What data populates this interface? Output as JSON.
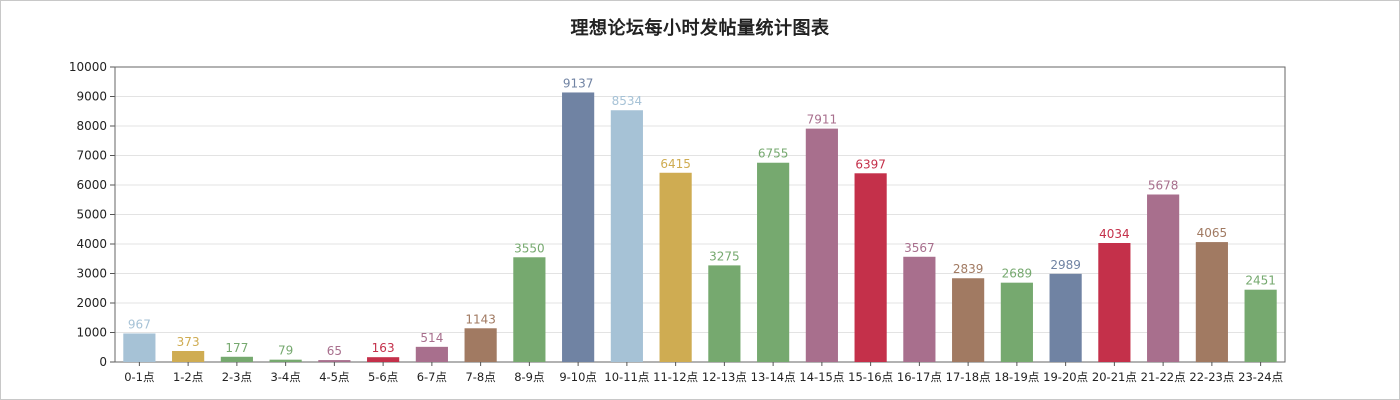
{
  "chart_data": {
    "type": "bar",
    "title": "理想论坛每小时发帖量统计图表",
    "xlabel": "",
    "ylabel": "",
    "ylim": [
      0,
      10000
    ],
    "yticks": [
      0,
      1000,
      2000,
      3000,
      4000,
      5000,
      6000,
      7000,
      8000,
      9000,
      10000
    ],
    "grid": true,
    "legend": "none",
    "categories": [
      "0-1点",
      "1-2点",
      "2-3点",
      "3-4点",
      "4-5点",
      "5-6点",
      "6-7点",
      "7-8点",
      "8-9点",
      "9-10点",
      "10-11点",
      "11-12点",
      "12-13点",
      "13-14点",
      "14-15点",
      "15-16点",
      "16-17点",
      "17-18点",
      "18-19点",
      "19-20点",
      "20-21点",
      "21-22点",
      "22-23点",
      "23-24点"
    ],
    "values": [
      967,
      373,
      177,
      79,
      65,
      163,
      514,
      1143,
      3550,
      9137,
      8534,
      6415,
      3275,
      6755,
      7911,
      6397,
      3567,
      2839,
      2689,
      2989,
      4034,
      5678,
      4065,
      2451
    ],
    "bar_colors": [
      "#a6c2d6",
      "#cfac52",
      "#76a96f",
      "#76a96f",
      "#a86f8d",
      "#c4304a",
      "#a86f8d",
      "#a17a62",
      "#76a96f",
      "#7083a3",
      "#a6c2d6",
      "#cfac52",
      "#76a96f",
      "#76a96f",
      "#a86f8d",
      "#c4304a",
      "#a86f8d",
      "#a17a62",
      "#76a96f",
      "#7083a3",
      "#c4304a",
      "#a86f8d",
      "#a17a62",
      "#76a96f"
    ]
  }
}
